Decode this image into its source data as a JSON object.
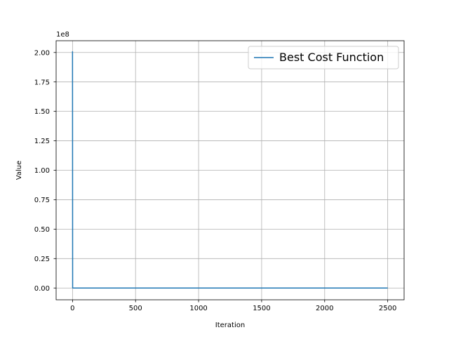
{
  "chart_data": {
    "type": "line",
    "title": "",
    "xlabel": "Iteration",
    "ylabel": "Value",
    "y_offset_label": "1e8",
    "xlim": [
      -130,
      2630
    ],
    "ylim": [
      -10000000,
      210000000
    ],
    "xticks": [
      0,
      500,
      1000,
      1500,
      2000,
      2500
    ],
    "xtick_labels": [
      "0",
      "500",
      "1000",
      "1500",
      "2000",
      "2500"
    ],
    "yticks": [
      0,
      25000000,
      50000000,
      75000000,
      100000000,
      125000000,
      150000000,
      175000000,
      200000000
    ],
    "ytick_labels": [
      "0.00",
      "0.25",
      "0.50",
      "0.75",
      "1.00",
      "1.25",
      "1.50",
      "1.75",
      "2.00"
    ],
    "grid": true,
    "legend_position": "top-right",
    "series": [
      {
        "name": "Best Cost Function",
        "color": "#1f77b4",
        "x": [
          0,
          1,
          2,
          10,
          50,
          100,
          500,
          1000,
          1500,
          2000,
          2500
        ],
        "y": [
          201000000,
          100000,
          20000,
          5000,
          2000,
          1500,
          1000,
          800,
          600,
          500,
          400
        ]
      }
    ]
  }
}
